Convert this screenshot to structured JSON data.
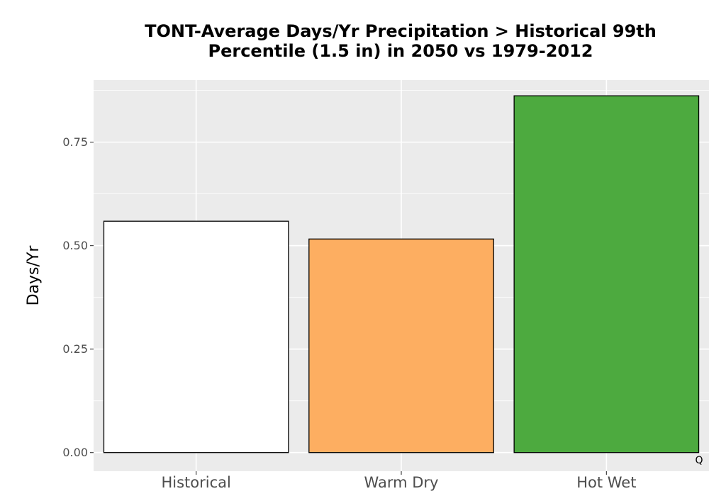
{
  "chart_data": {
    "type": "bar",
    "title": "TONT-Average Days/Yr Precipitation > Historical 99th\nPercentile (1.5 in) in 2050 vs 1979-2012",
    "xlabel": "",
    "ylabel": "Days/Yr",
    "categories": [
      "Historical",
      "Warm Dry",
      "Hot Wet"
    ],
    "values": [
      0.559,
      0.516,
      0.862
    ],
    "colors": [
      "#ffffff",
      "#fdae61",
      "#4daa3f"
    ],
    "bar_outline": "#000000",
    "panel_background": "#ebebeb",
    "gridline_color": "#ffffff",
    "ylim": [
      -0.045,
      0.9
    ],
    "yticks": [
      0.0,
      0.25,
      0.5,
      0.75
    ],
    "ytick_labels": [
      "0.00",
      "0.25",
      "0.50",
      "0.75"
    ],
    "grid": true,
    "legend": "none",
    "corner_mark": "Q"
  }
}
